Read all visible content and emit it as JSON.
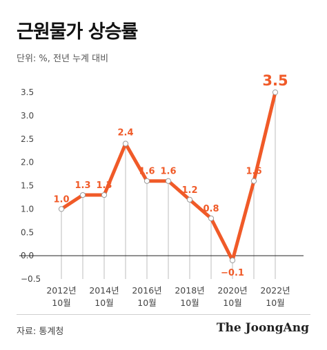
{
  "title": "근원물가 상승률",
  "subtitle": "단위: %, 전년 누계 대비",
  "source": "자료: 통계청",
  "brand": "The JoongAng",
  "colors": {
    "line": "#f05a28",
    "label": "#f05a28",
    "axis": "#222222",
    "grid": "#bdbdbd",
    "tick": "#444444"
  },
  "chart_data": {
    "type": "line",
    "title": "근원물가 상승률",
    "ylim": [
      -0.5,
      3.5
    ],
    "y_ticks": [
      "3.5",
      "3.0",
      "2.5",
      "2.0",
      "1.5",
      "1.0",
      "0.5",
      "0.0",
      "−0.5"
    ],
    "y_tick_values": [
      3.5,
      3.0,
      2.5,
      2.0,
      1.5,
      1.0,
      0.5,
      0.0,
      -0.5
    ],
    "x_ticks": [
      {
        "line1": "2012년",
        "line2": "10월",
        "index": 0
      },
      {
        "line1": "2014년",
        "line2": "10월",
        "index": 2
      },
      {
        "line1": "2016년",
        "line2": "10월",
        "index": 4
      },
      {
        "line1": "2018년",
        "line2": "10월",
        "index": 6
      },
      {
        "line1": "2020년",
        "line2": "10월",
        "index": 8
      },
      {
        "line1": "2022년",
        "line2": "10월",
        "index": 10
      }
    ],
    "series": [
      {
        "values": [
          1.0,
          1.3,
          1.3,
          2.4,
          1.6,
          1.6,
          1.2,
          0.8,
          -0.1,
          1.6,
          3.5
        ],
        "labels": [
          "1.0",
          "1.3",
          "1.3",
          "2.4",
          "1.6",
          "1.6",
          "1.2",
          "0.8",
          "−0.1",
          "1.6",
          "3.5"
        ]
      }
    ],
    "grid": false,
    "zero_line": true
  }
}
